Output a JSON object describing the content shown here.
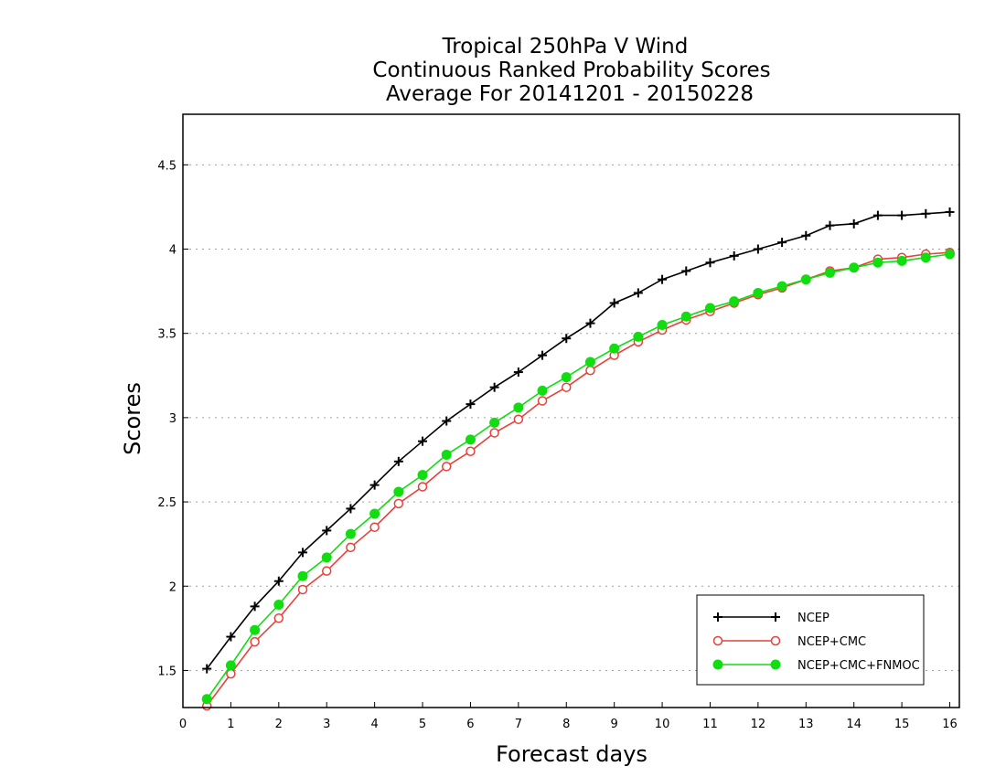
{
  "chart_data": {
    "type": "line",
    "title": [
      "Tropical 250hPa V Wind",
      "Continuous Ranked Probability Scores",
      "Average For 20141201 - 20150228"
    ],
    "xlabel": "Forecast days",
    "ylabel": "Scores",
    "xlim": [
      0,
      16.2
    ],
    "ylim": [
      1.28,
      4.8
    ],
    "xticks": [
      0,
      1,
      2,
      3,
      4,
      5,
      6,
      7,
      8,
      9,
      10,
      11,
      12,
      13,
      14,
      15,
      16
    ],
    "yticks": [
      1.5,
      2,
      2.5,
      3,
      3.5,
      4,
      4.5
    ],
    "ytick_labels": [
      "1.5",
      "2",
      "2.5",
      "3",
      "3.5",
      "4",
      "4.5"
    ],
    "grid": "horizontal dotted",
    "legend_position": "bottom-right",
    "x": [
      0.5,
      1,
      1.5,
      2,
      2.5,
      3,
      3.5,
      4,
      4.5,
      5,
      5.5,
      6,
      6.5,
      7,
      7.5,
      8,
      8.5,
      9,
      9.5,
      10,
      10.5,
      11,
      11.5,
      12,
      12.5,
      13,
      13.5,
      14,
      14.5,
      15,
      15.5,
      16
    ],
    "series": [
      {
        "name": "NCEP",
        "color": "#000000",
        "marker": "plus",
        "values": [
          1.51,
          1.7,
          1.88,
          2.03,
          2.2,
          2.33,
          2.46,
          2.6,
          2.74,
          2.86,
          2.98,
          3.08,
          3.18,
          3.27,
          3.37,
          3.47,
          3.56,
          3.68,
          3.74,
          3.82,
          3.87,
          3.92,
          3.96,
          4.0,
          4.04,
          4.08,
          4.14,
          4.15,
          4.2,
          4.2,
          4.21,
          4.22
        ]
      },
      {
        "name": "NCEP+CMC",
        "color": "#e8403a",
        "marker": "open-circle",
        "values": [
          1.29,
          1.48,
          1.67,
          1.81,
          1.98,
          2.09,
          2.23,
          2.35,
          2.49,
          2.59,
          2.71,
          2.8,
          2.91,
          2.99,
          3.1,
          3.18,
          3.28,
          3.37,
          3.45,
          3.52,
          3.58,
          3.63,
          3.68,
          3.73,
          3.77,
          3.82,
          3.87,
          3.89,
          3.94,
          3.95,
          3.97,
          3.98
        ]
      },
      {
        "name": "NCEP+CMC+FNMOC",
        "color": "#11dd11",
        "marker": "filled-circle",
        "values": [
          1.33,
          1.53,
          1.74,
          1.89,
          2.06,
          2.17,
          2.31,
          2.43,
          2.56,
          2.66,
          2.78,
          2.87,
          2.97,
          3.06,
          3.16,
          3.24,
          3.33,
          3.41,
          3.48,
          3.55,
          3.6,
          3.65,
          3.69,
          3.74,
          3.78,
          3.82,
          3.86,
          3.89,
          3.92,
          3.93,
          3.95,
          3.97
        ]
      }
    ]
  }
}
